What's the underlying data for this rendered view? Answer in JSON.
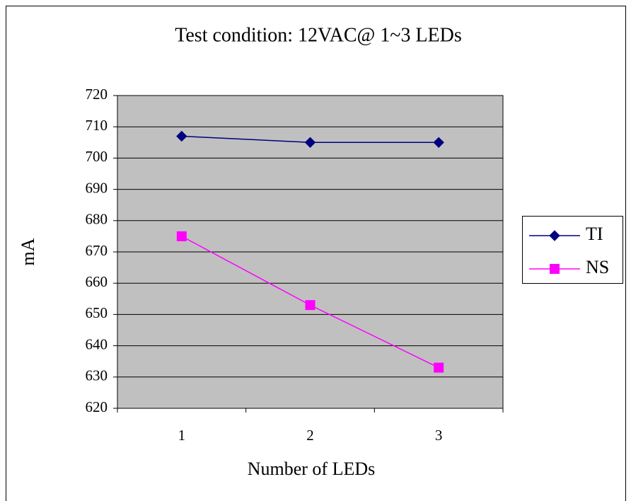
{
  "chart_data": {
    "type": "line",
    "title": "Test condition: 12VAC@ 1~3 LEDs",
    "x_label": "Number of LEDs",
    "y_label": "mA",
    "categories": [
      "1",
      "2",
      "3"
    ],
    "series": [
      {
        "name": "TI",
        "color": "#000080",
        "marker": "diamond",
        "values": [
          707,
          705,
          705
        ]
      },
      {
        "name": "NS",
        "color": "#ff00ff",
        "marker": "square",
        "values": [
          675,
          653,
          633
        ]
      }
    ],
    "ylim": [
      620,
      720
    ],
    "yticks": [
      620,
      630,
      640,
      650,
      660,
      670,
      680,
      690,
      700,
      710,
      720
    ],
    "grid": true,
    "legend": "right",
    "plot_background": "#c0c0c0"
  }
}
